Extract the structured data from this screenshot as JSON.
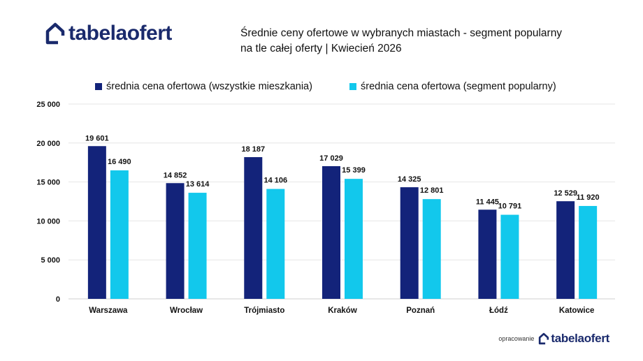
{
  "brand": {
    "logo_text_a": "tabela",
    "logo_text_b": "ofert"
  },
  "header": {
    "title_line1": "Średnie ceny ofertowe w wybranych miastach - segment popularny",
    "title_line2": "na tle całej oferty  | Kwiecień  2026"
  },
  "footer": {
    "prefix": "opracowanie",
    "logo_text_a": "tabela",
    "logo_text_b": "ofert"
  },
  "colors": {
    "series1": "#13237a",
    "series2": "#12c8ec",
    "grid": "#e6e6e6",
    "text": "#111111",
    "brand": "#1a2a6c"
  },
  "chart_data": {
    "type": "bar",
    "categories": [
      "Warszawa",
      "Wrocław",
      "Trójmiasto",
      "Kraków",
      "Poznań",
      "Łódź",
      "Katowice"
    ],
    "series": [
      {
        "name": "średnia cena ofertowa (wszystkie mieszkania)",
        "values": [
          19601,
          14852,
          18187,
          17029,
          14325,
          11445,
          12529
        ],
        "labels": [
          "19 601",
          "14 852",
          "18 187",
          "17 029",
          "14 325",
          "11 445",
          "12 529"
        ]
      },
      {
        "name": "średnia cena ofertowa (segment popularny)",
        "values": [
          16490,
          13614,
          14106,
          15399,
          12801,
          10791,
          11920
        ],
        "labels": [
          "16 490",
          "13 614",
          "14 106",
          "15 399",
          "12 801",
          "10 791",
          "11 920"
        ]
      }
    ],
    "ylim": [
      0,
      25000
    ],
    "yticks": [
      0,
      5000,
      10000,
      15000,
      20000,
      25000
    ],
    "ytick_labels": [
      "0",
      "5 000",
      "10 000",
      "15 000",
      "20 000",
      "25 000"
    ],
    "grid": true,
    "legend_position": "top"
  }
}
